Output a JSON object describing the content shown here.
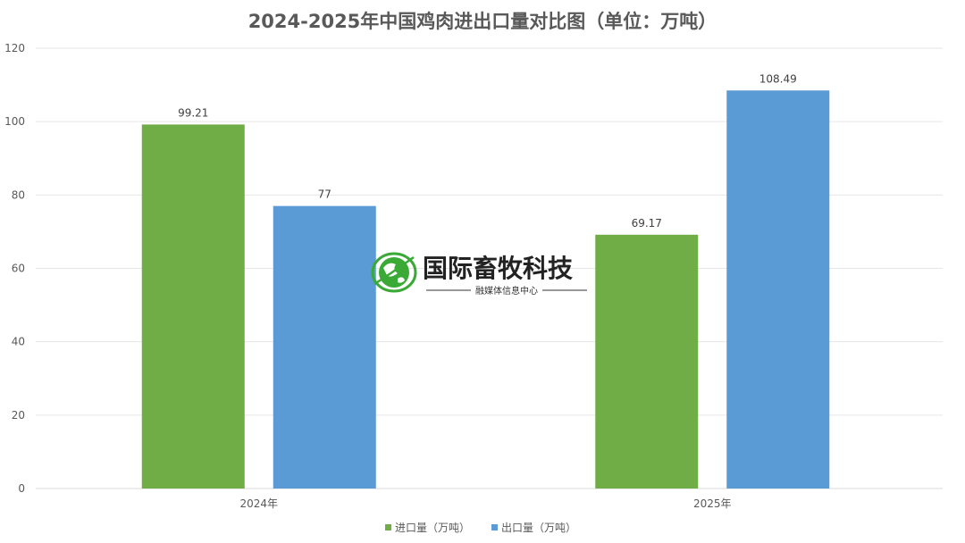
{
  "chart_data": {
    "type": "bar",
    "title": "2024-2025年中国鸡肉进出口量对比图（单位：万吨）",
    "categories": [
      "2024年",
      "2025年"
    ],
    "series": [
      {
        "name": "进口量（万吨）",
        "values": [
          99.21,
          69.17
        ],
        "color": "#70ad47"
      },
      {
        "name": "出口量（万吨）",
        "values": [
          77,
          108.49
        ],
        "color": "#5b9bd5"
      }
    ],
    "data_labels": [
      [
        "99.21",
        "69.17"
      ],
      [
        "77",
        "108.49"
      ]
    ],
    "ylim": [
      0,
      120
    ],
    "yticks": [
      0,
      20,
      40,
      60,
      80,
      100,
      120
    ],
    "grid": true,
    "legend_position": "bottom"
  },
  "watermark": {
    "title": "国际畜牧科技",
    "subtitle": "融媒体信息中心",
    "icon": "globe-leaf-icon",
    "colors": {
      "green": "#3aa935",
      "text": "#222222"
    }
  }
}
